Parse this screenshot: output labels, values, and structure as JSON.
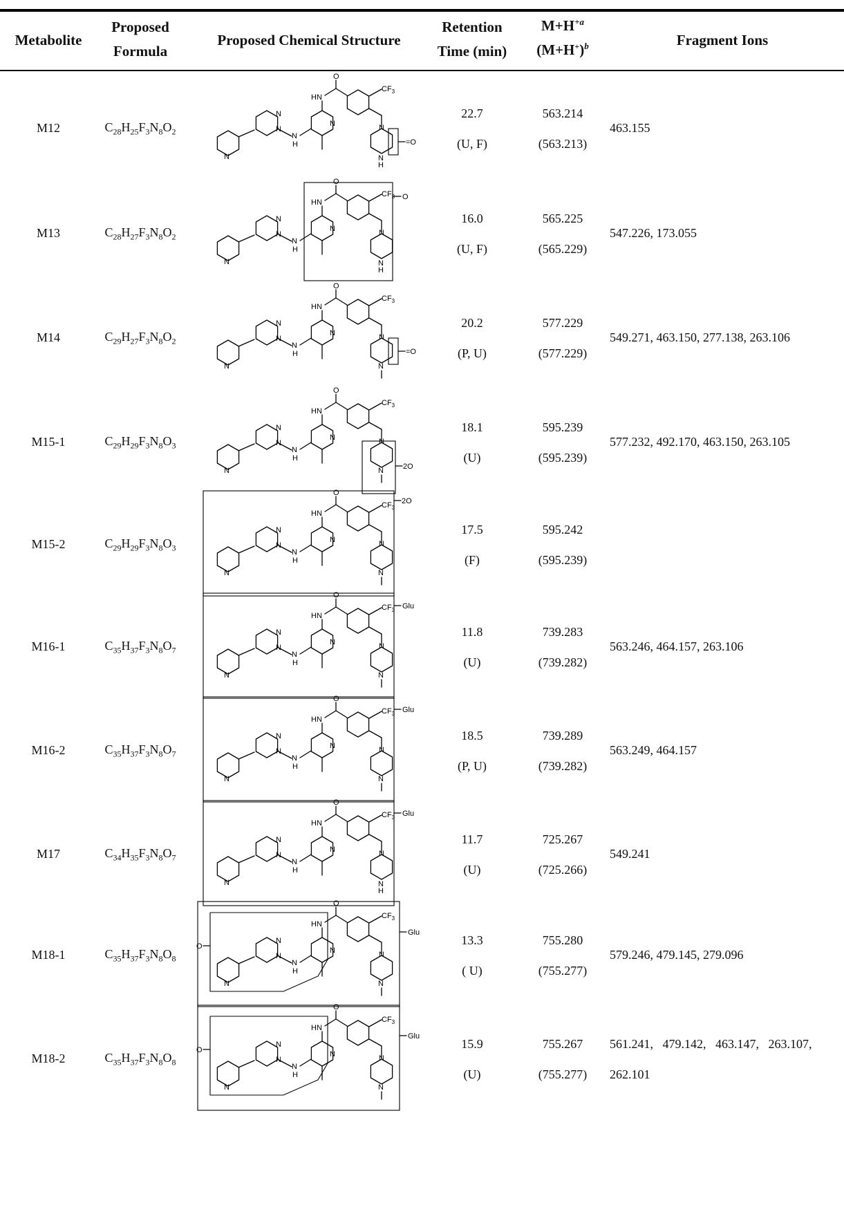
{
  "headers": {
    "metabolite": "Metabolite",
    "formula_1": "Proposed",
    "formula_2": "Formula",
    "structure": "Proposed Chemical Structure",
    "rt_1": "Retention",
    "rt_2": "Time (min)",
    "mh_1": "M+H",
    "mh_1_sup": "+a",
    "mh_2": "(M+H",
    "mh_2_sup_plus": "+",
    "mh_2_close": ")",
    "mh_2_sup": "b",
    "fragments": "Fragment Ions"
  },
  "rows": [
    {
      "id": "M12",
      "formula": [
        "C",
        "28",
        "H",
        "25",
        "F",
        "3",
        "N",
        "8",
        "O",
        "2"
      ],
      "rt": "22.7",
      "matrix": "(U, F)",
      "mh": "563.214",
      "mh_calc": "(563.213)",
      "frag_1": "463.155",
      "frag_2": "",
      "mod": "=O"
    },
    {
      "id": "M13",
      "formula": [
        "C",
        "28",
        "H",
        "27",
        "F",
        "3",
        "N",
        "8",
        "O",
        "2"
      ],
      "rt": "16.0",
      "matrix": "(U, F)",
      "mh": "565.225",
      "mh_calc": "(565.229)",
      "frag_1": "547.226, 173.055",
      "frag_2": "",
      "mod": "O"
    },
    {
      "id": "M14",
      "formula": [
        "C",
        "29",
        "H",
        "27",
        "F",
        "3",
        "N",
        "8",
        "O",
        "2"
      ],
      "rt": "20.2",
      "matrix": "(P, U)",
      "mh": "577.229",
      "mh_calc": "(577.229)",
      "frag_1": "549.271, 463.150, 277.138, 263.106",
      "frag_2": "",
      "mod": "=O"
    },
    {
      "id": "M15-1",
      "formula": [
        "C",
        "29",
        "H",
        "29",
        "F",
        "3",
        "N",
        "8",
        "O",
        "3"
      ],
      "rt": "18.1",
      "matrix": "(U)",
      "mh": "595.239",
      "mh_calc": "(595.239)",
      "frag_1": "577.232, 492.170, 463.150, 263.105",
      "frag_2": "",
      "mod": "2O"
    },
    {
      "id": "M15-2",
      "formula": [
        "C",
        "29",
        "H",
        "29",
        "F",
        "3",
        "N",
        "8",
        "O",
        "3"
      ],
      "rt": "17.5",
      "matrix": "(F)",
      "mh": "595.242",
      "mh_calc": "(595.239)",
      "frag_1": "",
      "frag_2": "",
      "mod": "2O"
    },
    {
      "id": "M16-1",
      "formula": [
        "C",
        "35",
        "H",
        "37",
        "F",
        "3",
        "N",
        "8",
        "O",
        "7"
      ],
      "rt": "11.8",
      "matrix": "(U)",
      "mh": "739.283",
      "mh_calc": "(739.282)",
      "frag_1": "563.246, 464.157, 263.106",
      "frag_2": "",
      "mod": "Glu"
    },
    {
      "id": "M16-2",
      "formula": [
        "C",
        "35",
        "H",
        "37",
        "F",
        "3",
        "N",
        "8",
        "O",
        "7"
      ],
      "rt": "18.5",
      "matrix": "(P, U)",
      "mh": "739.289",
      "mh_calc": "(739.282)",
      "frag_1": "563.249, 464.157",
      "frag_2": "",
      "mod": "Glu"
    },
    {
      "id": "M17",
      "formula": [
        "C",
        "34",
        "H",
        "35",
        "F",
        "3",
        "N",
        "8",
        "O",
        "7"
      ],
      "rt": "11.7",
      "matrix": "(U)",
      "mh": "725.267",
      "mh_calc": "(725.266)",
      "frag_1": "549.241",
      "frag_2": "",
      "mod": "Glu"
    },
    {
      "id": "M18-1",
      "formula": [
        "C",
        "35",
        "H",
        "37",
        "F",
        "3",
        "N",
        "8",
        "O",
        "8"
      ],
      "rt": "13.3",
      "matrix": "( U)",
      "mh": "755.280",
      "mh_calc": "(755.277)",
      "frag_1": "579.246, 479.145, 279.096",
      "frag_2": "",
      "mod": "Glu",
      "mod2": "O"
    },
    {
      "id": "M18-2",
      "formula": [
        "C",
        "35",
        "H",
        "37",
        "F",
        "3",
        "N",
        "8",
        "O",
        "8"
      ],
      "rt": "15.9",
      "matrix": "(U)",
      "mh": "755.267",
      "mh_calc": "(755.277)",
      "frag_1": "561.241,   479.142,   463.147,   263.107,",
      "frag_2": "262.101",
      "mod": "Glu",
      "mod2": "O"
    }
  ],
  "structure_labels": {
    "cf3": "CF",
    "cf3_sub": "3",
    "hn": "HN",
    "o": "O",
    "n": "N",
    "h": "H"
  }
}
